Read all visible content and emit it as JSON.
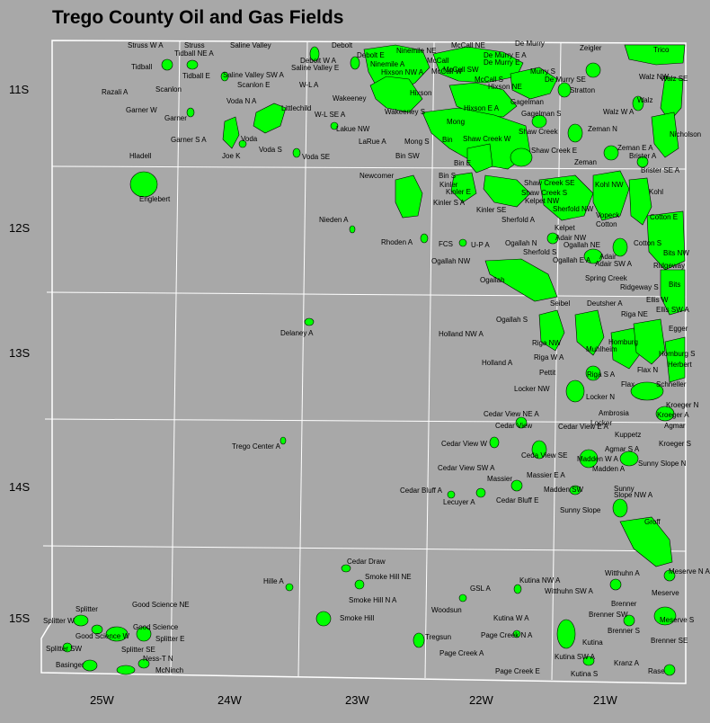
{
  "title": "Trego County Oil and Gas Fields",
  "colors": {
    "background": "#a8a8a8",
    "field": "#00ff00",
    "grid": "#ffffff",
    "text": "#000000"
  },
  "row_labels": [
    "11S",
    "12S",
    "13S",
    "14S",
    "15S"
  ],
  "column_labels": [
    "25W",
    "24W",
    "23W",
    "22W",
    "21W"
  ],
  "field_labels": [
    "Struss W A",
    "Struss",
    "Tidball NE A",
    "Saline Valley",
    "Debolt",
    "Debolt E",
    "Ninemile NE",
    "McCall NE",
    "De Murry",
    "Zeigler",
    "Trico",
    "Tidball",
    "Tidball E",
    "Saline Valley SW A",
    "Debolt W A",
    "Saline Valley E",
    "Ninemile A",
    "Hixson NW A",
    "McCall",
    "McCall W",
    "McCall SW",
    "De Murry E A",
    "De Murry E",
    "Murry S",
    "De Murry SE",
    "Razali A",
    "Scanlon",
    "Scanlon E",
    "W-L A",
    "McCall S",
    "Hixson NE",
    "Stratton",
    "Walz NW",
    "Walz SE",
    "Walz",
    "Voda N A",
    "Wakeeney",
    "Hixson",
    "Garner W",
    "Garner",
    "Littlechild",
    "W-L SE A",
    "Wakeeney S",
    "Hixson E A",
    "Gagelman",
    "Gagelman S",
    "Walz W A",
    "Lakue NW",
    "Mong",
    "Shaw Creek",
    "Zeman N",
    "Nicholson",
    "Garner S A",
    "Voda",
    "LaRue A",
    "Mong S",
    "Bin",
    "Shaw Creek W",
    "Shaw Creek E",
    "Zeman E A",
    "Brister A",
    "Voda S",
    "Bin SW",
    "Bin E",
    "Hladell",
    "Joe K",
    "Voda SE",
    "Zeman",
    "Brister SE A",
    "Newcomer",
    "Bin S",
    "Kinler",
    "Shaw Creek SE",
    "Kohl",
    "Englebert",
    "Kinler E",
    "Shaw Creek S",
    "Kohl NW",
    "Kinler S A",
    "Kelpet NW",
    "Kinler SE",
    "Sherfold NW",
    "Vopeck",
    "Cotton E",
    "Nieden A",
    "Sherfold A",
    "Cotton",
    "Kelpet",
    "Adair NW",
    "Rhoden A",
    "FCS",
    "U-P A",
    "Ogallah N",
    "Ogallah NE",
    "Cotton S",
    "Sherfold S",
    "Adair",
    "Bits NW",
    "Ogallah NW",
    "Ogallah E A",
    "Adair SW A",
    "Ridgeway",
    "Spring Creek",
    "Ogallah",
    "Bits",
    "Ridgeway S",
    "Seibel",
    "Deutsher A",
    "Ellis W",
    "Riga NE",
    "Ellis SW A",
    "Delaney A",
    "Ogallah S",
    "Egger",
    "Holland NW A",
    "Riga NW",
    "Homburg",
    "Muhlheim",
    "Homburg S",
    "Riga W A",
    "Herbert",
    "Holland A",
    "Pettit",
    "Riga S A",
    "Flax N",
    "Locker NW",
    "Flax",
    "Schneller",
    "Locker N",
    "Kroeger N",
    "Cedar View NE A",
    "Ambrosia",
    "Kroeger A",
    "Cedar View",
    "Locker",
    "Agmar",
    "Cedar View E A",
    "Kuppetz",
    "Trego Center A",
    "Cedar View W",
    "Kroeger S",
    "Agmar S A",
    "Ceda View SE",
    "Madden W A",
    "Sunny Slope N",
    "Cedar View SW A",
    "Massier E A",
    "Madden A",
    "Massier",
    "Madden SW",
    "Sunny",
    "Slope NW A",
    "Cedar Bluff A",
    "Lecuyer A",
    "Cedar Bluff E",
    "Sunny Slope",
    "Groff",
    "Cedar Draw",
    "Smoke Hill NE",
    "Witthuhn A",
    "Meserve N A",
    "Hille A",
    "Kutina NW A",
    "GSL A",
    "Witthuhn SW A",
    "Meserve",
    "Smoke Hill N A",
    "Brenner",
    "Good Science NE",
    "Splitter",
    "Woodsun",
    "Splitter W",
    "Kutina W A",
    "Brenner SW",
    "Meserve S",
    "Smoke Hill",
    "Good Science",
    "Good Science W",
    "Splitter E",
    "Brenner S",
    "Brenner SE",
    "Page Creek N A",
    "Tregsun",
    "Splitter SW",
    "Splitter SE",
    "Kutina",
    "Ness-T N",
    "Page Creek A",
    "Kutina SW A",
    "Basinger",
    "McNinch",
    "Kranz A",
    "Page Creek E",
    "Rase",
    "Kutina S"
  ]
}
